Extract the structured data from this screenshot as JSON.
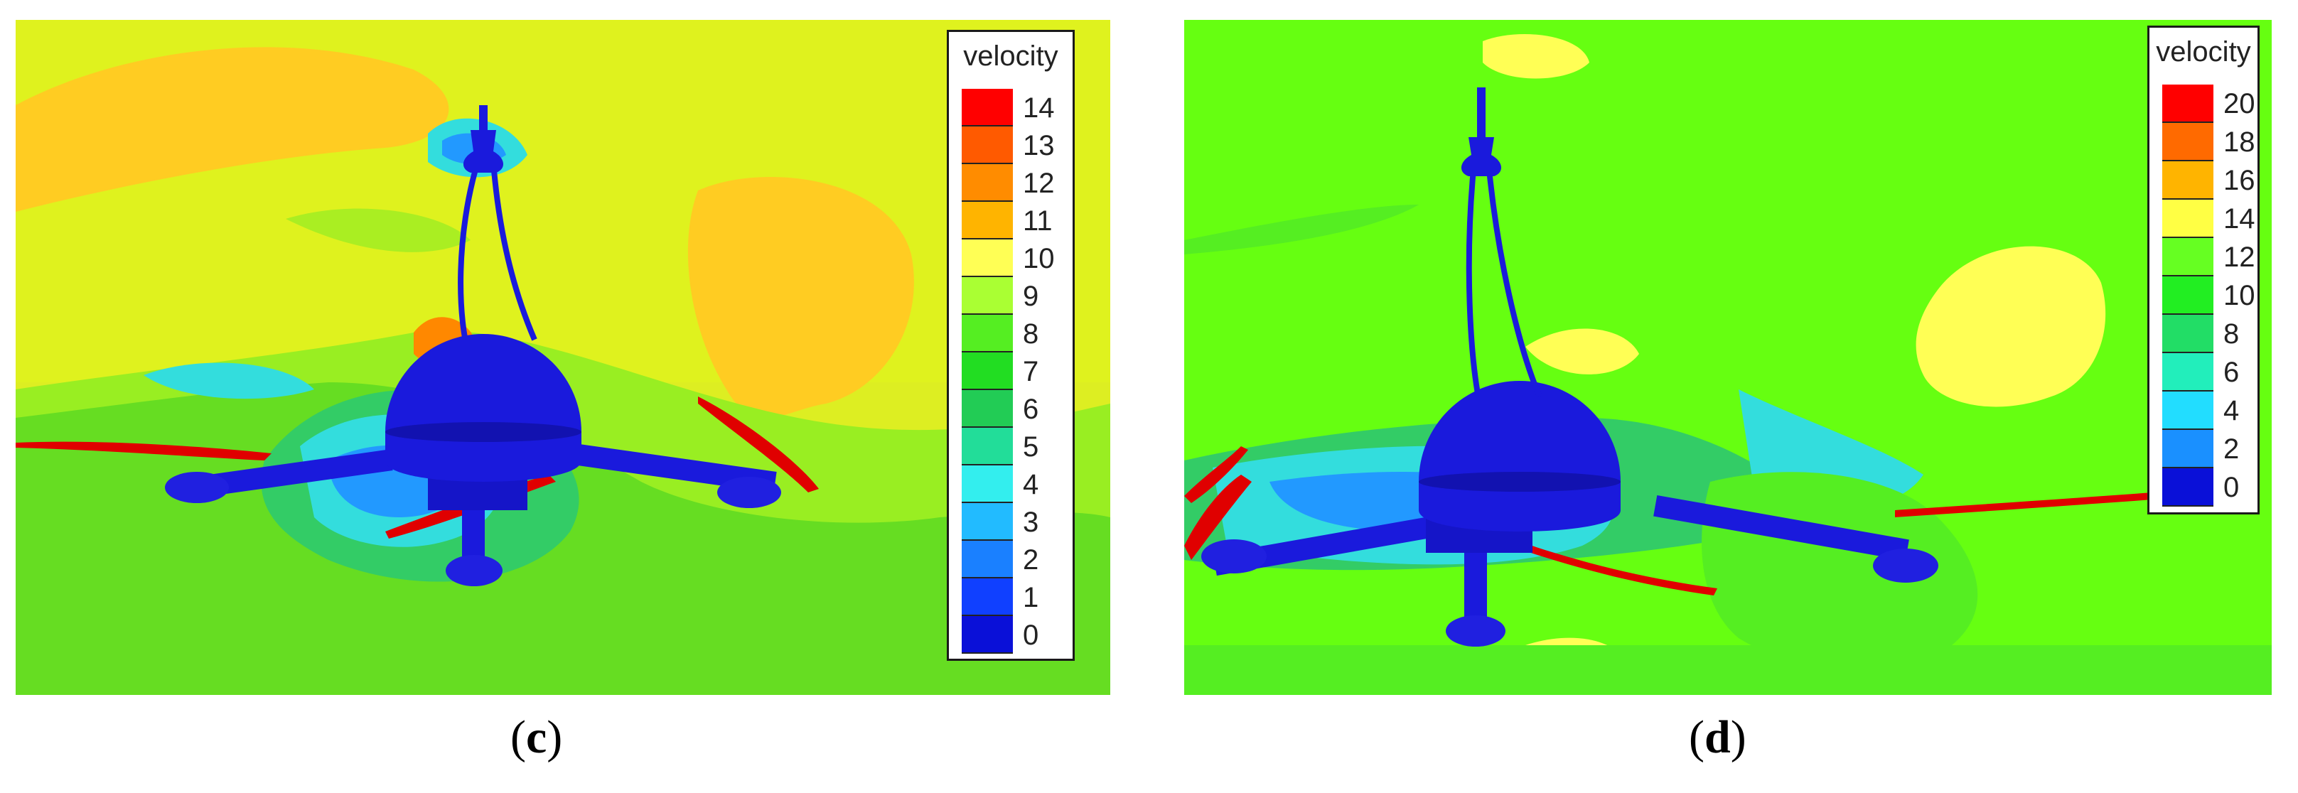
{
  "panels": [
    {
      "label": "c",
      "legend": {
        "title": "velocity",
        "ticks": [
          "14",
          "13",
          "12",
          "11",
          "10",
          "9",
          "8",
          "7",
          "6",
          "5",
          "4",
          "3",
          "2",
          "1",
          "0"
        ],
        "colors": [
          "#ff0000",
          "#ff5a00",
          "#ff8c00",
          "#ffb400",
          "#ffff55",
          "#aaff33",
          "#55ee22",
          "#22dd22",
          "#22cc55",
          "#22dd99",
          "#33eeee",
          "#22bbff",
          "#1a80ff",
          "#1040ff",
          "#0a10d8"
        ]
      }
    },
    {
      "label": "d",
      "legend": {
        "title": "velocity",
        "ticks": [
          "20",
          "18",
          "16",
          "14",
          "12",
          "10",
          "8",
          "6",
          "4",
          "2",
          "0"
        ],
        "colors": [
          "#ff0000",
          "#ff6a00",
          "#ffb400",
          "#ffff44",
          "#66ff22",
          "#22ee22",
          "#22dd66",
          "#22eebb",
          "#22ddff",
          "#1a90ff",
          "#0a10d8"
        ]
      }
    }
  ],
  "colors": {
    "body": "#1a1adc",
    "blade": "#e00000"
  }
}
